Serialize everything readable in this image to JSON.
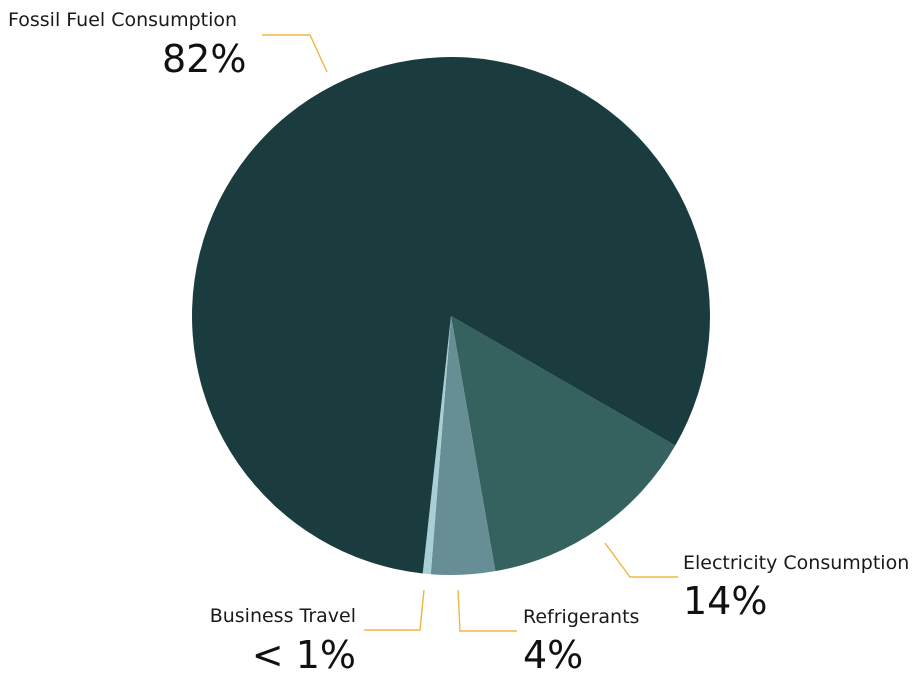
{
  "chart_data": {
    "type": "pie",
    "title": "",
    "slices": [
      {
        "label": "Fossil Fuel Consumption",
        "value": 82,
        "value_label": "82%",
        "color": "#1b3c3f"
      },
      {
        "label": "Electricity Consumption",
        "value": 14,
        "value_label": "14%",
        "color": "#35615f"
      },
      {
        "label": "Refrigerants",
        "value": 4,
        "value_label": "4%",
        "color": "#668e94"
      },
      {
        "label": "Business Travel",
        "value": 0.5,
        "value_label": "< 1%",
        "color": "#a9cfd6"
      }
    ],
    "leader_color": "#f2b544",
    "legend": "none"
  }
}
